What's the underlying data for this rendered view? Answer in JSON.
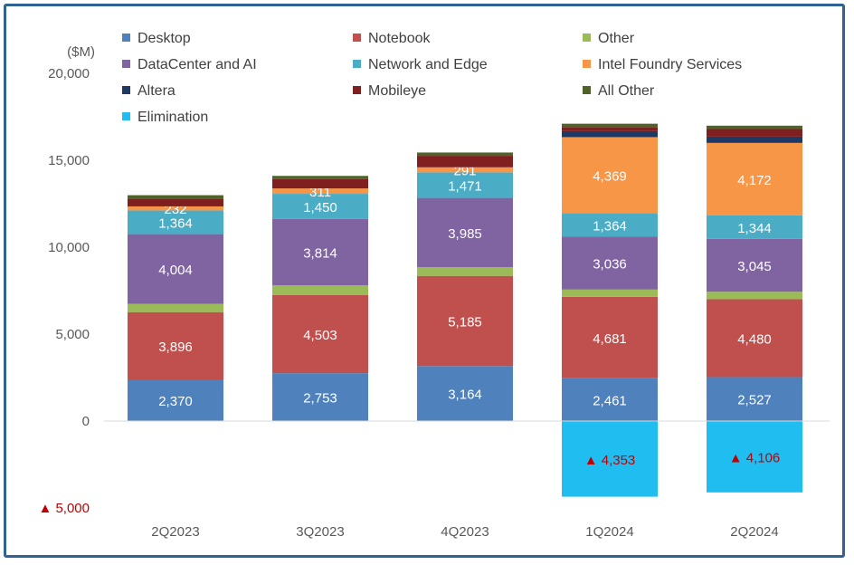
{
  "chart_data": {
    "type": "bar",
    "stacked": true,
    "unit_label": "($M)",
    "categories": [
      "2Q2023",
      "3Q2023",
      "4Q2023",
      "1Q2024",
      "2Q2024"
    ],
    "ylim": [
      -5000,
      20000
    ],
    "yticks": [
      {
        "value": 20000,
        "label": "20,000"
      },
      {
        "value": 15000,
        "label": "15,000"
      },
      {
        "value": 10000,
        "label": "10,000"
      },
      {
        "value": 5000,
        "label": "5,000"
      },
      {
        "value": 0,
        "label": "0"
      },
      {
        "value": -5000,
        "label": "▲ 5,000"
      }
    ],
    "grid": false,
    "legend_position": "top",
    "series": [
      {
        "name": "Desktop",
        "color": "#4f81bd",
        "values": [
          2370,
          2753,
          3164,
          2461,
          2527
        ],
        "labels": [
          "2,370",
          "2,753",
          "3,164",
          "2,461",
          "2,527"
        ],
        "label_color": "#ffffff"
      },
      {
        "name": "Notebook",
        "color": "#c0504d",
        "values": [
          3896,
          4503,
          5185,
          4681,
          4480
        ],
        "labels": [
          "3,896",
          "4,503",
          "5,185",
          "4,681",
          "4,480"
        ],
        "label_color": "#ffffff"
      },
      {
        "name": "Other",
        "color": "#9bbb59",
        "values": [
          480,
          550,
          500,
          420,
          430
        ],
        "labels": [
          "",
          "",
          "",
          "",
          ""
        ],
        "label_color": "#ffffff"
      },
      {
        "name": "DataCenter and AI",
        "color": "#8064a2",
        "values": [
          4004,
          3814,
          3985,
          3036,
          3045
        ],
        "labels": [
          "4,004",
          "3,814",
          "3,985",
          "3,036",
          "3,045"
        ],
        "label_color": "#ffffff"
      },
      {
        "name": "Network and Edge",
        "color": "#4bacc6",
        "values": [
          1364,
          1450,
          1471,
          1364,
          1344
        ],
        "labels": [
          "1,364",
          "1,450",
          "1,471",
          "1,364",
          "1,344"
        ],
        "label_color": "#ffffff"
      },
      {
        "name": "Intel Foundry Services",
        "color": "#f79646",
        "values": [
          232,
          311,
          291,
          4369,
          4172
        ],
        "labels": [
          "232",
          "311",
          "291",
          "4,369",
          "4,172"
        ],
        "label_color": "#ffffff"
      },
      {
        "name": "Altera",
        "color": "#1f3864",
        "values": [
          0,
          0,
          0,
          342,
          361
        ],
        "labels": [
          "",
          "",
          "",
          "",
          ""
        ],
        "label_color": "#ffffff"
      },
      {
        "name": "Mobileye",
        "color": "#7f1f1f",
        "values": [
          454,
          530,
          660,
          239,
          440
        ],
        "labels": [
          "",
          "",
          "",
          "",
          ""
        ],
        "label_color": "#ffffff"
      },
      {
        "name": "All Other",
        "color": "#4f6228",
        "values": [
          190,
          190,
          190,
          190,
          190
        ],
        "labels": [
          "",
          "",
          "",
          "",
          ""
        ],
        "label_color": "#ffffff"
      },
      {
        "name": "Elimination",
        "color": "#1fbdf0",
        "values": [
          0,
          0,
          0,
          -4353,
          -4106
        ],
        "labels": [
          "",
          "",
          "",
          "▲ 4,353",
          "▲ 4,106"
        ],
        "label_color": "#c00000"
      }
    ]
  }
}
